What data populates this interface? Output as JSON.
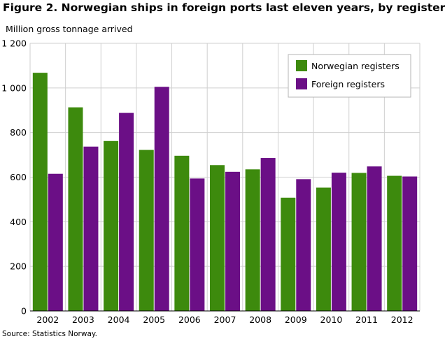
{
  "title": "Figure 2. Norwegian ships in foreign ports last eleven years, by register",
  "source": "Source: Statistics Norway.",
  "colors": {
    "norwegian": "#3d8a0d",
    "foreign": "#6b0f86",
    "grid": "#cfcfcf",
    "axis": "#000000"
  },
  "chart_data": {
    "type": "bar",
    "ylabel": "Million gross tonnage arrived",
    "categories": [
      "2002",
      "2003",
      "2004",
      "2005",
      "2006",
      "2007",
      "2008",
      "2009",
      "2010",
      "2011",
      "2012"
    ],
    "series": [
      {
        "name": "Norwegian registers",
        "values": [
          1068,
          913,
          762,
          722,
          696,
          654,
          635,
          508,
          553,
          619,
          606
        ]
      },
      {
        "name": "Foreign registers",
        "values": [
          615,
          737,
          888,
          1005,
          594,
          624,
          686,
          591,
          620,
          648,
          603
        ]
      }
    ],
    "ylim": [
      0,
      1200
    ],
    "yticks": [
      0,
      200,
      400,
      600,
      800,
      1000,
      1200
    ],
    "ytick_labels": [
      "0",
      "200",
      "400",
      "600",
      "800",
      "1 000",
      "1 200"
    ],
    "grid": true,
    "legend_position": "top-right"
  }
}
